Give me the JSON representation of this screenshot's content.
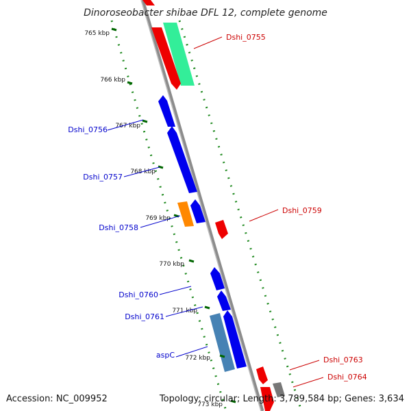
{
  "title": "Dinoroseobacter shibae DFL 12, complete genome",
  "footer": {
    "accession": "Accession: NC_009952",
    "summary": "Topology: circular; Length: 3,789,584 bp; Genes: 3,634"
  },
  "ticks": [
    "765 kbp",
    "766 kbp",
    "767 kbp",
    "768 kbp",
    "769 kbp",
    "770 kbp",
    "771 kbp",
    "772 kbp",
    "773 kbp"
  ],
  "gene_labels_forward": [
    "Dshi_0755",
    "Dshi_0759",
    "Dshi_0763",
    "Dshi_0764"
  ],
  "gene_labels_reverse": [
    "Dshi_0756",
    "Dshi_0757",
    "Dshi_0758",
    "Dshi_0760",
    "Dshi_0761",
    "aspC"
  ],
  "colors": {
    "forward_label": "#cc0000",
    "reverse_label": "#0000cc",
    "cds_forward": "#ee0000",
    "cds_reverse": "#0000ee",
    "rna": "#33ee99",
    "orange": "#ff8800",
    "steel_blue": "#4682b4",
    "gray_gene": "#777777",
    "backbone": "#888888",
    "tick": "#006600"
  }
}
